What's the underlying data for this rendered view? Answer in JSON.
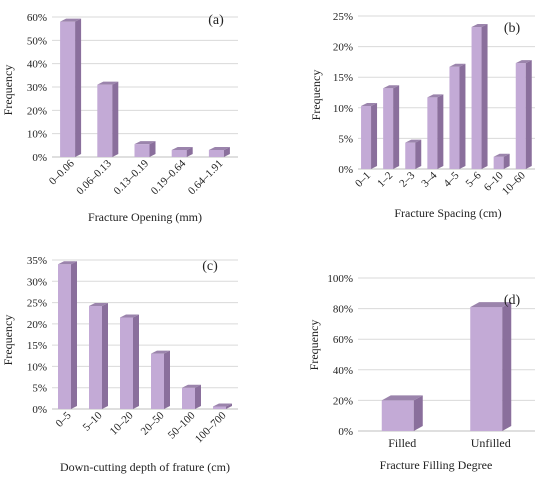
{
  "colors": {
    "bar_front": "#c3aad6",
    "bar_side": "#8a6f9c",
    "bar_top": "#9b84ac",
    "grid": "#dadada",
    "axis": "#bfbfbf"
  },
  "chart_data": [
    {
      "panel_label": "(a)",
      "type": "bar",
      "style": "3d",
      "categories": [
        "0–0.06",
        "0.06–0.13",
        "0.13–0.19",
        "0.19–0.64",
        "0.64–1.91"
      ],
      "values": [
        58,
        31,
        5.5,
        3,
        3
      ],
      "xlabel": "Fracture Opening (mm)",
      "ylabel": "Frequency",
      "ylim": [
        0,
        60
      ],
      "yticks": [
        "0%",
        "10%",
        "20%",
        "30%",
        "40%",
        "50%",
        "60%"
      ],
      "grid": true,
      "x_tick_rotation": "rotated"
    },
    {
      "panel_label": "(b)",
      "type": "bar",
      "style": "3d",
      "categories": [
        "0–1",
        "1–2",
        "2–3",
        "3–4",
        "4–5",
        "5–6",
        "6–10",
        "10–60"
      ],
      "values": [
        10.3,
        13.2,
        4.3,
        11.7,
        16.7,
        23.2,
        2,
        17.3
      ],
      "xlabel": "Fracture Spacing (cm)",
      "ylabel": "Frequency",
      "ylim": [
        0,
        25
      ],
      "yticks": [
        "0%",
        "5%",
        "10%",
        "15%",
        "20%",
        "25%"
      ],
      "grid": true,
      "x_tick_rotation": "rotated"
    },
    {
      "panel_label": "(c)",
      "type": "bar",
      "style": "3d",
      "categories": [
        "0–5",
        "5–10",
        "10–20",
        "20–50",
        "50–100",
        "100–700"
      ],
      "values": [
        34,
        24.2,
        21.5,
        13,
        5,
        0.6
      ],
      "xlabel": "Down-cutting depth of frature (cm)",
      "ylabel": "Frequency",
      "ylim": [
        0,
        35
      ],
      "yticks": [
        "0%",
        "5%",
        "10%",
        "15%",
        "20%",
        "25%",
        "30%",
        "35%"
      ],
      "grid": true,
      "x_tick_rotation": "rotated"
    },
    {
      "panel_label": "(d)",
      "type": "bar",
      "style": "3d",
      "categories": [
        "Filled",
        "Unfilled"
      ],
      "values": [
        20,
        81
      ],
      "xlabel": "Fracture Filling Degree",
      "ylabel": "Frequency",
      "ylim": [
        0,
        100
      ],
      "yticks": [
        "0%",
        "20%",
        "40%",
        "60%",
        "80%",
        "100%"
      ],
      "grid": true,
      "x_tick_rotation": "none"
    }
  ]
}
